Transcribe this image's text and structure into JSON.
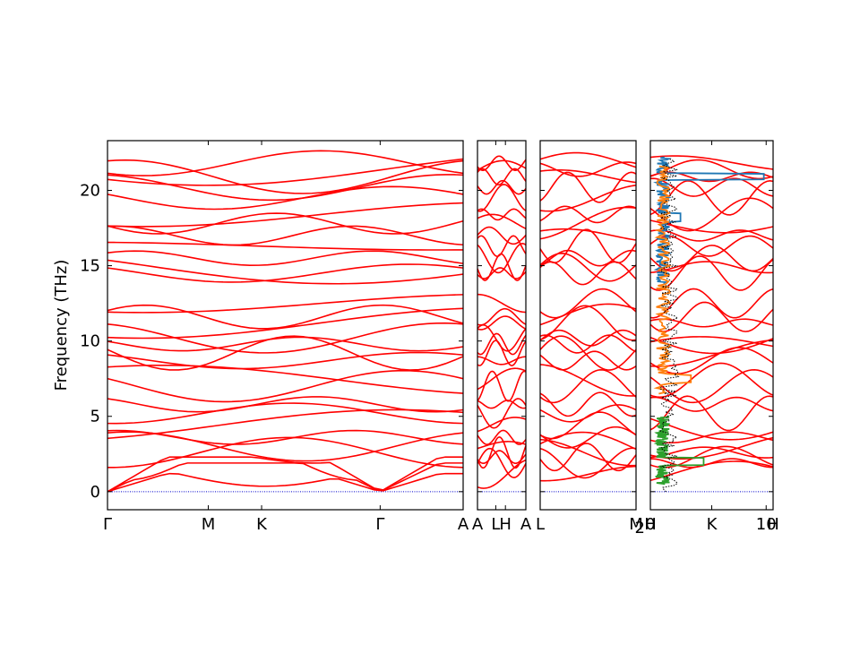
{
  "chart_data": {
    "type": "line",
    "title": "",
    "ylabel": "Frequency (THz)",
    "ylim": [
      -1.2,
      23.3
    ],
    "yticks": [
      0,
      5,
      10,
      15,
      20
    ],
    "grid": false,
    "band_color": "#ff0000",
    "zero_line_color": "#0000cc",
    "segments": [
      {
        "id": "seg1",
        "xlim": [
          0,
          3.0
        ],
        "labels": [
          {
            "text": "Γ",
            "x": 0.0
          },
          {
            "text": "M",
            "x": 0.85
          },
          {
            "text": "K",
            "x": 1.3
          },
          {
            "text": "Γ",
            "x": 2.3
          },
          {
            "text": "A",
            "x": 3.0
          }
        ]
      },
      {
        "id": "seg2",
        "xlim": [
          0,
          2.25
        ],
        "labels": [
          {
            "text": "A",
            "x": 0.0
          },
          {
            "text": "L",
            "x": 0.85
          },
          {
            "text": "H",
            "x": 1.3
          },
          {
            "text": "A",
            "x": 2.25
          }
        ]
      },
      {
        "id": "seg3",
        "xlim": [
          0,
          1.0
        ],
        "labels": [
          {
            "text": "L",
            "x": 0.0
          },
          {
            "text": "M",
            "x": 1.0
          }
        ]
      },
      {
        "id": "seg4",
        "xlim": [
          0,
          1.0
        ],
        "labels": [
          {
            "text": "H",
            "x": 0.0
          },
          {
            "text": "K",
            "x": 0.5
          },
          {
            "text": "H",
            "x": 1.0
          }
        ]
      }
    ],
    "dos": {
      "xlim": [
        0,
        10.6
      ],
      "xticks": [
        {
          "value": 0,
          "label": "0"
        },
        {
          "value": 10,
          "label": "10"
        }
      ],
      "xtick_prefix": "2",
      "series": [
        {
          "color": "#1f77b4",
          "freq_range": [
            13.8,
            22.2
          ]
        },
        {
          "color": "#ff7f0e",
          "freq_range": [
            6.5,
            21.6
          ]
        },
        {
          "color": "#2ca02c",
          "freq_range": [
            0.5,
            5.0
          ]
        },
        {
          "color": "#000000",
          "freq_range": [
            0.0,
            22.2
          ],
          "style": "dotted"
        }
      ]
    }
  }
}
